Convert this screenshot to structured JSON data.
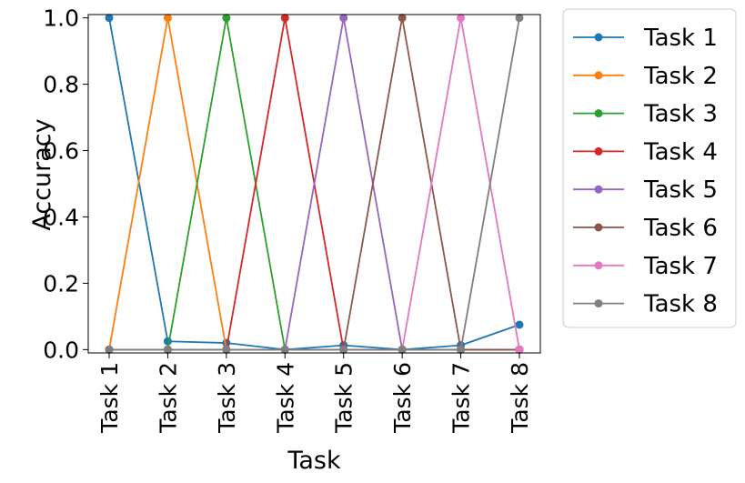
{
  "chart_data": {
    "type": "line",
    "xlabel": "Task",
    "ylabel": "Accuracy",
    "categories": [
      "Task 1",
      "Task 2",
      "Task 3",
      "Task 4",
      "Task 5",
      "Task 6",
      "Task 7",
      "Task 8"
    ],
    "ylim": [
      -0.01,
      1.01
    ],
    "yticks": [
      "0.0",
      "0.2",
      "0.4",
      "0.6",
      "0.8",
      "1.0"
    ],
    "legend_position": "outside-right-top",
    "grid": false,
    "series": [
      {
        "name": "Task 1",
        "color": "#1f77b4",
        "values": [
          1.0,
          0.025,
          0.02,
          0.0,
          0.013,
          0.0,
          0.013,
          0.075
        ]
      },
      {
        "name": "Task 2",
        "color": "#ff7f0e",
        "values": [
          0.0,
          1.0,
          0.0,
          0.0,
          0.0,
          0.0,
          0.0,
          0.0
        ]
      },
      {
        "name": "Task 3",
        "color": "#2ca02c",
        "values": [
          0.0,
          0.0,
          1.0,
          0.0,
          0.0,
          0.0,
          0.0,
          0.0
        ]
      },
      {
        "name": "Task 4",
        "color": "#d62728",
        "values": [
          0.0,
          0.0,
          0.0,
          1.0,
          0.0,
          0.0,
          0.0,
          0.0
        ]
      },
      {
        "name": "Task 5",
        "color": "#9467bd",
        "values": [
          0.0,
          0.0,
          0.0,
          0.0,
          1.0,
          0.0,
          0.0,
          0.0
        ]
      },
      {
        "name": "Task 6",
        "color": "#8c564b",
        "values": [
          0.0,
          0.0,
          0.0,
          0.0,
          0.0,
          1.0,
          0.0,
          0.0
        ]
      },
      {
        "name": "Task 7",
        "color": "#e377c2",
        "values": [
          0.0,
          0.0,
          0.0,
          0.0,
          0.0,
          0.0,
          1.0,
          0.0
        ]
      },
      {
        "name": "Task 8",
        "color": "#7f7f7f",
        "values": [
          0.0,
          0.0,
          0.0,
          0.0,
          0.0,
          0.0,
          0.0,
          1.0
        ]
      }
    ]
  }
}
